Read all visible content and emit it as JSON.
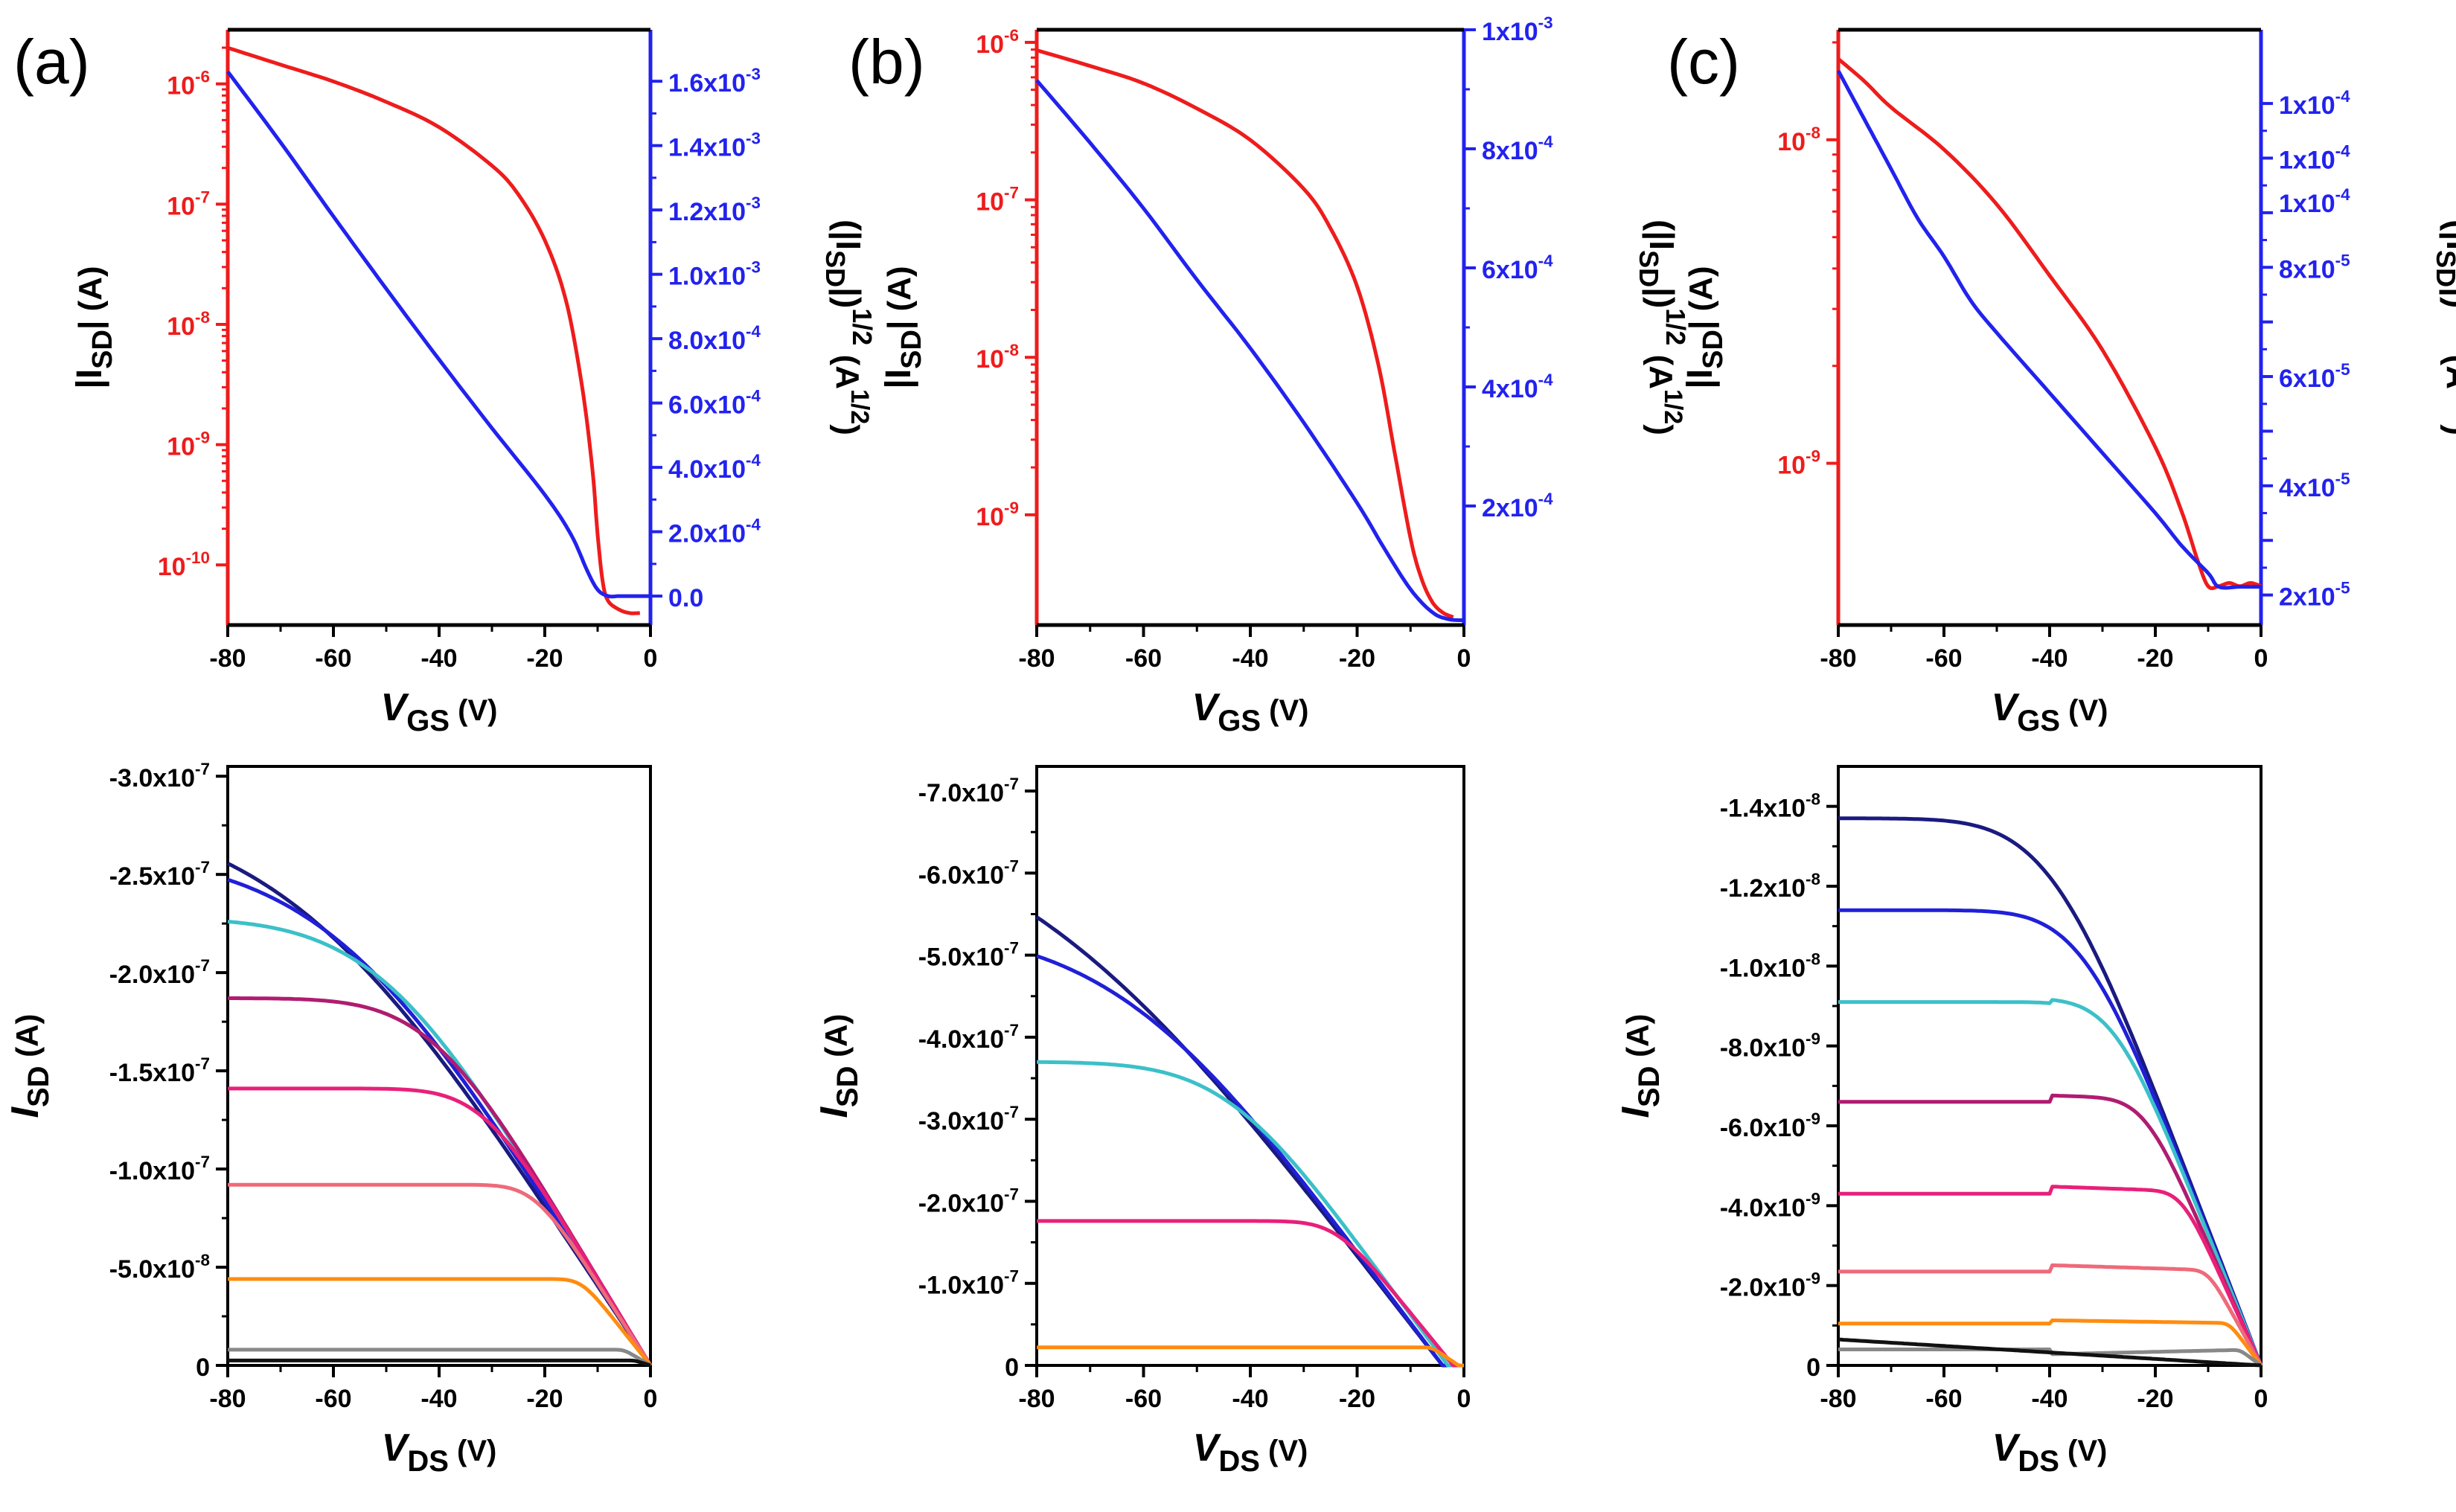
{
  "figure": {
    "panel_labels": [
      "(a)",
      "(b)",
      "(c)"
    ],
    "colors": {
      "transfer_log": "#ee1c1c",
      "transfer_sqrt": "#2222ee",
      "axis": "#000000",
      "output_curves": [
        "#1a1a80",
        "#2020d8",
        "#3cc0c8",
        "#b01c70",
        "#e8207a",
        "#ee6a7a",
        "#ff8c10",
        "#888888",
        "#111111"
      ]
    }
  },
  "chart_data": [
    {
      "id": "a-transfer",
      "panel": "(a)",
      "type": "line",
      "xlabel": {
        "main": "V",
        "sub": "GS",
        "unit": "(V)"
      },
      "ylabel_left": {
        "pre": "|I",
        "sub": "SD",
        "post": "| (A)"
      },
      "ylabel_right": {
        "pre": "(|I",
        "sub": "SD",
        "mid": "|)",
        "sup": "1/2",
        "unit": "(A",
        "unit_sup": "1/2",
        "unit_close": ")"
      },
      "xlim": [
        -80,
        0
      ],
      "x_ticks": [
        -80,
        -60,
        -40,
        -20,
        0
      ],
      "x_tick_labels": [
        "-80",
        "-60",
        "-40",
        "-20",
        "0"
      ],
      "ylim_left_log": [
        -10.5,
        -5.55
      ],
      "y_left_ticks": [
        -6,
        -7,
        -8,
        -9,
        -10
      ],
      "y_left_tick_labels": [
        {
          "base": "10",
          "exp": "-6"
        },
        {
          "base": "10",
          "exp": "-7"
        },
        {
          "base": "10",
          "exp": "-8"
        },
        {
          "base": "10",
          "exp": "-9"
        },
        {
          "base": "10",
          "exp": "-10"
        }
      ],
      "ylim_right": [
        -9e-05,
        0.00176
      ],
      "y_right_ticks": [
        0.0,
        0.0002,
        0.0004,
        0.0006,
        0.0008,
        0.001,
        0.0012,
        0.0014,
        0.0016
      ],
      "y_right_tick_labels": [
        {
          "base": "0.0",
          "exp": ""
        },
        {
          "base": "2.0x10",
          "exp": "-4"
        },
        {
          "base": "4.0x10",
          "exp": "-4"
        },
        {
          "base": "6.0x10",
          "exp": "-4"
        },
        {
          "base": "8.0x10",
          "exp": "-4"
        },
        {
          "base": "1.0x10",
          "exp": "-3"
        },
        {
          "base": "1.2x10",
          "exp": "-3"
        },
        {
          "base": "1.4x10",
          "exp": "-3"
        },
        {
          "base": "1.6x10",
          "exp": "-3"
        }
      ],
      "series_log": {
        "name": "|ISD|",
        "x": [
          -80,
          -70,
          -60,
          -50,
          -40,
          -30,
          -25,
          -20,
          -16,
          -13,
          -11,
          -10,
          -9,
          -8,
          -6,
          -4,
          -2
        ],
        "log10_y": [
          -5.7,
          -5.84,
          -5.98,
          -6.15,
          -6.36,
          -6.68,
          -6.92,
          -7.3,
          -7.8,
          -8.5,
          -9.2,
          -9.75,
          -10.15,
          -10.3,
          -10.37,
          -10.4,
          -10.4
        ]
      },
      "series_sqrt": {
        "name": "(|ISD|)^1/2",
        "x": [
          -80,
          -70,
          -60,
          -50,
          -40,
          -30,
          -20,
          -15,
          -12,
          -10,
          -8,
          -6,
          -4,
          -2,
          0
        ],
        "y": [
          0.00163,
          0.00141,
          0.00118,
          0.000955,
          0.000735,
          0.000522,
          0.000315,
          0.00019,
          8e-05,
          2e-05,
          0.0,
          0.0,
          0.0,
          0.0,
          0.0
        ]
      }
    },
    {
      "id": "b-transfer",
      "panel": "(b)",
      "type": "line",
      "xlabel": {
        "main": "V",
        "sub": "GS",
        "unit": "(V)"
      },
      "ylabel_left": {
        "pre": "|I",
        "sub": "SD",
        "post": "| (A)"
      },
      "ylabel_right": {
        "pre": "(|I",
        "sub": "SD",
        "mid": "|)",
        "sup": "1/2",
        "unit": "(A",
        "unit_sup": "1/2",
        "unit_close": ")"
      },
      "xlim": [
        -80,
        0
      ],
      "x_ticks": [
        -80,
        -60,
        -40,
        -20,
        0
      ],
      "x_tick_labels": [
        "-80",
        "-60",
        "-40",
        "-20",
        "0"
      ],
      "ylim_left_log": [
        -9.7,
        -5.92
      ],
      "y_left_ticks": [
        -6,
        -7,
        -8,
        -9
      ],
      "y_left_tick_labels": [
        {
          "base": "10",
          "exp": "-6"
        },
        {
          "base": "10",
          "exp": "-7"
        },
        {
          "base": "10",
          "exp": "-8"
        },
        {
          "base": "10",
          "exp": "-9"
        }
      ],
      "ylim_right": [
        0.0,
        0.001
      ],
      "y_right_ticks": [
        0.0002,
        0.0004,
        0.0006,
        0.0008,
        0.001
      ],
      "y_right_tick_labels": [
        {
          "base": "2x10",
          "exp": "-4"
        },
        {
          "base": "4x10",
          "exp": "-4"
        },
        {
          "base": "6x10",
          "exp": "-4"
        },
        {
          "base": "8x10",
          "exp": "-4"
        },
        {
          "base": "1x10",
          "exp": "-3"
        }
      ],
      "series_log": {
        "name": "|ISD|",
        "x": [
          -80,
          -70,
          -60,
          -50,
          -40,
          -30,
          -25,
          -20,
          -16,
          -13,
          -10,
          -8,
          -6,
          -4,
          -2
        ],
        "log10_y": [
          -6.05,
          -6.15,
          -6.26,
          -6.42,
          -6.62,
          -6.93,
          -7.18,
          -7.55,
          -8.05,
          -8.6,
          -9.15,
          -9.4,
          -9.55,
          -9.62,
          -9.65
        ]
      },
      "series_sqrt": {
        "name": "(|ISD|)^1/2",
        "x": [
          -80,
          -70,
          -60,
          -50,
          -40,
          -30,
          -20,
          -15,
          -10,
          -6,
          -3,
          0
        ],
        "y": [
          0.000915,
          0.00081,
          0.0007,
          0.00058,
          0.000465,
          0.00034,
          0.000205,
          0.00013,
          6e-05,
          2.2e-05,
          1e-05,
          8e-06
        ]
      }
    },
    {
      "id": "c-transfer",
      "panel": "(c)",
      "type": "line",
      "xlabel": {
        "main": "V",
        "sub": "GS",
        "unit": "(V)"
      },
      "ylabel_left": {
        "pre": "|I",
        "sub": "SD",
        "post": "| (A)"
      },
      "ylabel_right": {
        "pre": "(|I",
        "sub": "SD",
        "mid": "|)",
        "sup": "1/2",
        "unit": "(A",
        "unit_sup": "1/2",
        "unit_close": ")"
      },
      "xlim": [
        -80,
        0
      ],
      "x_ticks": [
        -80,
        -60,
        -40,
        -20,
        0
      ],
      "x_tick_labels": [
        "-80",
        "-60",
        "-40",
        "-20",
        "0"
      ],
      "ylim_left_log": [
        -9.5,
        -7.66
      ],
      "y_left_ticks": [
        -8,
        -9
      ],
      "y_left_tick_labels": [
        {
          "base": "10",
          "exp": "-8"
        },
        {
          "base": "10",
          "exp": "-9"
        }
      ],
      "ylim_right": [
        1.45e-05,
        0.0001235
      ],
      "y_right_ticks": [
        2e-05,
        3e-05,
        4e-05,
        5e-05,
        6e-05,
        7e-05,
        8e-05,
        9e-05,
        0.0001,
        0.00011
      ],
      "y_right_tick_labels": [
        {
          "base": "2x10",
          "exp": "-5"
        },
        {
          "base": "",
          "exp": ""
        },
        {
          "base": "4x10",
          "exp": "-5"
        },
        {
          "base": "",
          "exp": ""
        },
        {
          "base": "6x10",
          "exp": "-5"
        },
        {
          "base": "",
          "exp": ""
        },
        {
          "base": "8x10",
          "exp": "-5"
        },
        {
          "base": "",
          "exp": ""
        },
        {
          "base": "1x10",
          "exp": "-4"
        },
        {
          "base": "",
          "exp": ""
        }
      ],
      "y_right_extra_labels": [
        {
          "value": 9.2e-05,
          "base": "1x10",
          "exp": "-4"
        },
        {
          "value": 0.0001,
          "base": "1x10",
          "exp": "-4"
        },
        {
          "value": 0.00011,
          "base": "1x10",
          "exp": "-4"
        }
      ],
      "series_log": {
        "name": "|ISD|",
        "x": [
          -80,
          -75,
          -70,
          -60,
          -50,
          -40,
          -30,
          -20,
          -15,
          -12,
          -10,
          -8,
          -6,
          -4,
          -2,
          0
        ],
        "log10_y": [
          -7.75,
          -7.82,
          -7.9,
          -8.03,
          -8.2,
          -8.42,
          -8.65,
          -8.95,
          -9.15,
          -9.3,
          -9.38,
          -9.38,
          -9.37,
          -9.38,
          -9.37,
          -9.38
        ]
      },
      "series_sqrt": {
        "name": "(|ISD|)^1/2",
        "x": [
          -80,
          -75,
          -70,
          -65,
          -60,
          -55,
          -50,
          -40,
          -30,
          -20,
          -15,
          -10,
          -8,
          -4,
          0
        ],
        "y": [
          0.000116,
          0.000107,
          9.8e-05,
          8.9e-05,
          8.2e-05,
          7.4e-05,
          6.8e-05,
          5.7e-05,
          4.6e-05,
          3.5e-05,
          2.9e-05,
          2.4e-05,
          2.15e-05,
          2.15e-05,
          2.15e-05
        ]
      }
    },
    {
      "id": "a-output",
      "panel": "(a)",
      "type": "line",
      "xlabel": {
        "main": "V",
        "sub": "DS",
        "unit": "(V)"
      },
      "ylabel": {
        "main": "I",
        "sub": "SD",
        "unit": "(A)"
      },
      "xlim": [
        -80,
        0
      ],
      "x_ticks": [
        -80,
        -60,
        -40,
        -20,
        0
      ],
      "x_tick_labels": [
        "-80",
        "-60",
        "-40",
        "-20",
        "0"
      ],
      "ylim": [
        0,
        -3.05e-07
      ],
      "y_ticks": [
        0,
        -5e-08,
        -1e-07,
        -1.5e-07,
        -2e-07,
        -2.5e-07,
        -3e-07
      ],
      "y_tick_labels": [
        {
          "base": "0",
          "exp": ""
        },
        {
          "base": "-5.0x10",
          "exp": "-8"
        },
        {
          "base": "-1.0x10",
          "exp": "-7"
        },
        {
          "base": "-1.5x10",
          "exp": "-7"
        },
        {
          "base": "-2.0x10",
          "exp": "-7"
        },
        {
          "base": "-2.5x10",
          "exp": "-7"
        },
        {
          "base": "-3.0x10",
          "exp": "-7"
        }
      ],
      "series": [
        {
          "color": "#1a1a80",
          "sat": -2.84e-07,
          "vknee": 70,
          "sharp": 1.6,
          "slope": 0.0
        },
        {
          "color": "#2020d8",
          "sat": -2.61e-07,
          "vknee": 62,
          "sharp": 1.7,
          "slope": 0.0
        },
        {
          "color": "#3cc0c8",
          "sat": -2.28e-07,
          "vknee": 52,
          "sharp": 2.0,
          "slope": 0.0
        },
        {
          "color": "#b01c70",
          "sat": -1.87e-07,
          "vknee": 42,
          "sharp": 2.3,
          "slope": 0.0
        },
        {
          "color": "#e8207a",
          "sat": -1.41e-07,
          "vknee": 32,
          "sharp": 2.6,
          "slope": 0.0
        },
        {
          "color": "#ee6a7a",
          "sat": -9.2e-08,
          "vknee": 22,
          "sharp": 3.0,
          "slope": 0.0
        },
        {
          "color": "#ff8c10",
          "sat": -4.4e-08,
          "vknee": 13,
          "sharp": 3.5,
          "slope": 0.0
        },
        {
          "color": "#888888",
          "sat": -8e-09,
          "vknee": 5,
          "sharp": 4.0,
          "slope": 0.0
        },
        {
          "color": "#111111",
          "sat": -2.5e-09,
          "vknee": 3,
          "sharp": 4.0,
          "slope": 0.0
        }
      ]
    },
    {
      "id": "b-output",
      "panel": "(b)",
      "type": "line",
      "xlabel": {
        "main": "V",
        "sub": "DS",
        "unit": "(V)"
      },
      "ylabel": {
        "main": "I",
        "sub": "SD",
        "unit": "(A)"
      },
      "xlim": [
        -80,
        0
      ],
      "x_ticks": [
        -80,
        -60,
        -40,
        -20,
        0
      ],
      "x_tick_labels": [
        "-80",
        "-60",
        "-40",
        "-20",
        "0"
      ],
      "ylim": [
        0,
        -7.3e-07
      ],
      "y_ticks": [
        0,
        -1e-07,
        -2e-07,
        -3e-07,
        -4e-07,
        -5e-07,
        -6e-07,
        -7e-07
      ],
      "y_tick_labels": [
        {
          "base": "0",
          "exp": ""
        },
        {
          "base": "-1.0x10",
          "exp": "-7"
        },
        {
          "base": "-2.0x10",
          "exp": "-7"
        },
        {
          "base": "-3.0x10",
          "exp": "-7"
        },
        {
          "base": "-4.0x10",
          "exp": "-7"
        },
        {
          "base": "-5.0x10",
          "exp": "-7"
        },
        {
          "base": "-6.0x10",
          "exp": "-7"
        },
        {
          "base": "-7.0x10",
          "exp": "-7"
        }
      ],
      "series": [
        {
          "color": "#1a1a80",
          "sat": -6.85e-07,
          "vknee": 82,
          "sharp": 1.5,
          "slope": 0.0,
          "x0": -4
        },
        {
          "color": "#2020d8",
          "sat": -5.35e-07,
          "vknee": 62,
          "sharp": 1.7,
          "slope": 0.0,
          "x0": -4
        },
        {
          "color": "#3cc0c8",
          "sat": -3.7e-07,
          "vknee": 42,
          "sharp": 2.1,
          "slope": 0.0,
          "x0": -3
        },
        {
          "color": "#e8207a",
          "sat": -1.76e-07,
          "vknee": 22,
          "sharp": 2.8,
          "slope": 0.0,
          "x0": -2
        },
        {
          "color": "#ff8c10",
          "sat": -2.2e-08,
          "vknee": 5,
          "sharp": 4.0,
          "slope": 0.0,
          "x0": -1
        }
      ]
    },
    {
      "id": "c-output",
      "panel": "(c)",
      "type": "line",
      "xlabel": {
        "main": "V",
        "sub": "DS",
        "unit": "(V)"
      },
      "ylabel": {
        "main": "I",
        "sub": "SD",
        "unit": "(A)"
      },
      "xlim": [
        -80,
        0
      ],
      "x_ticks": [
        -80,
        -60,
        -40,
        -20,
        0
      ],
      "x_tick_labels": [
        "-80",
        "-60",
        "-40",
        "-20",
        "0"
      ],
      "ylim": [
        0,
        -1.5e-08
      ],
      "y_ticks": [
        0,
        -2e-09,
        -4e-09,
        -6e-09,
        -8e-09,
        -1e-08,
        -1.2e-08,
        -1.4e-08
      ],
      "y_tick_labels": [
        {
          "base": "0",
          "exp": ""
        },
        {
          "base": "-2.0x10",
          "exp": "-9"
        },
        {
          "base": "-4.0x10",
          "exp": "-9"
        },
        {
          "base": "-6.0x10",
          "exp": "-9"
        },
        {
          "base": "-8.0x10",
          "exp": "-9"
        },
        {
          "base": "-1.0x10",
          "exp": "-8"
        },
        {
          "base": "-1.2x10",
          "exp": "-8"
        },
        {
          "base": "-1.4x10",
          "exp": "-8"
        }
      ],
      "series": [
        {
          "color": "#1a1a80",
          "sat": -1.37e-08,
          "vknee": 40,
          "sharp": 2.4,
          "slope": 0.0
        },
        {
          "color": "#2020d8",
          "sat": -1.14e-08,
          "vknee": 34,
          "sharp": 2.5,
          "slope": 0.0
        },
        {
          "color": "#3cc0c8",
          "sat": -9.1e-09,
          "vknee": 28,
          "sharp": 2.8,
          "slope": -2.2e-12
        },
        {
          "color": "#b01c70",
          "sat": -6.6e-09,
          "vknee": 22,
          "sharp": 3.0,
          "slope": -4e-12
        },
        {
          "color": "#e8207a",
          "sat": -4.3e-09,
          "vknee": 15,
          "sharp": 3.3,
          "slope": -4.5e-12
        },
        {
          "color": "#ee6a7a",
          "sat": -2.35e-09,
          "vknee": 10,
          "sharp": 3.6,
          "slope": -4e-12
        },
        {
          "color": "#ff8c10",
          "sat": -1.05e-09,
          "vknee": 6,
          "sharp": 3.8,
          "slope": -2e-12
        },
        {
          "color": "#888888",
          "sat": -4e-10,
          "vknee": 4,
          "sharp": 4.0,
          "slope": 3e-12
        },
        {
          "color": "#111111",
          "sat": -6.5e-10,
          "vknee": 200,
          "sharp": 1.0,
          "slope": 0.0,
          "linear": true
        }
      ]
    }
  ]
}
